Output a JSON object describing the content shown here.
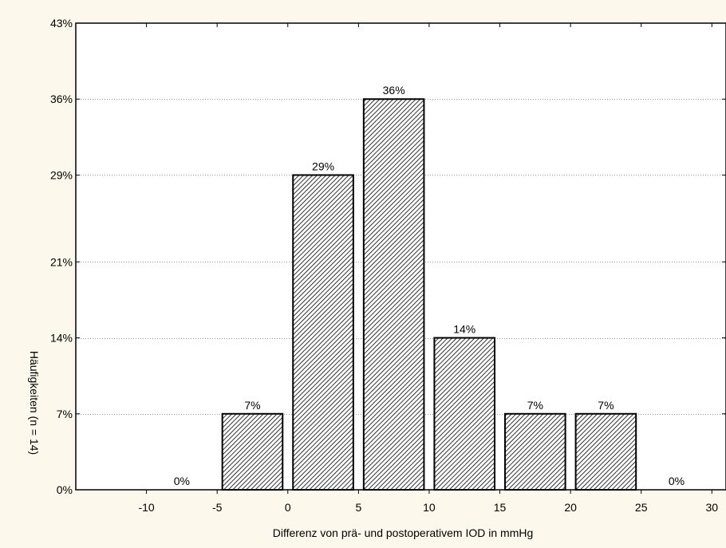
{
  "chart_data": {
    "type": "bar",
    "title": "",
    "xlabel": "Differenz von prä- und postoperativem IOD in mmHg",
    "ylabel": "Häufigkeiten (n = 14)",
    "xlim": [
      -15,
      31
    ],
    "ylim": [
      0,
      43
    ],
    "x_ticks": [
      -10,
      -5,
      0,
      5,
      10,
      15,
      20,
      25,
      30
    ],
    "x_tick_labels": [
      "-10",
      "-5",
      "0",
      "5",
      "10",
      "15",
      "20",
      "25",
      "30"
    ],
    "y_ticks": [
      0,
      7,
      14,
      21,
      29,
      36,
      43
    ],
    "y_tick_labels": [
      "0%",
      "7%",
      "14%",
      "21%",
      "29%",
      "36%",
      "43%"
    ],
    "bins": [
      {
        "start": -10,
        "end": -5,
        "value": 0,
        "label": "0%"
      },
      {
        "start": -5,
        "end": 0,
        "value": 7,
        "label": "7%"
      },
      {
        "start": 0,
        "end": 5,
        "value": 29,
        "label": "29%"
      },
      {
        "start": 5,
        "end": 10,
        "value": 36,
        "label": "36%"
      },
      {
        "start": 10,
        "end": 15,
        "value": 14,
        "label": "14%"
      },
      {
        "start": 15,
        "end": 20,
        "value": 7,
        "label": "7%"
      },
      {
        "start": 20,
        "end": 25,
        "value": 7,
        "label": "7%"
      },
      {
        "start": 25,
        "end": 30,
        "value": 0,
        "label": "0%"
      }
    ],
    "grid": "horizontal dotted",
    "fill_pattern": "diagonal hatch",
    "colors": {
      "bar_edge": "#000000",
      "hatch": "#000000",
      "bar_bg": "#ffffff",
      "page_bg": "#fdf8ec",
      "plot_bg": "#ffffff",
      "grid": "#999999"
    }
  }
}
